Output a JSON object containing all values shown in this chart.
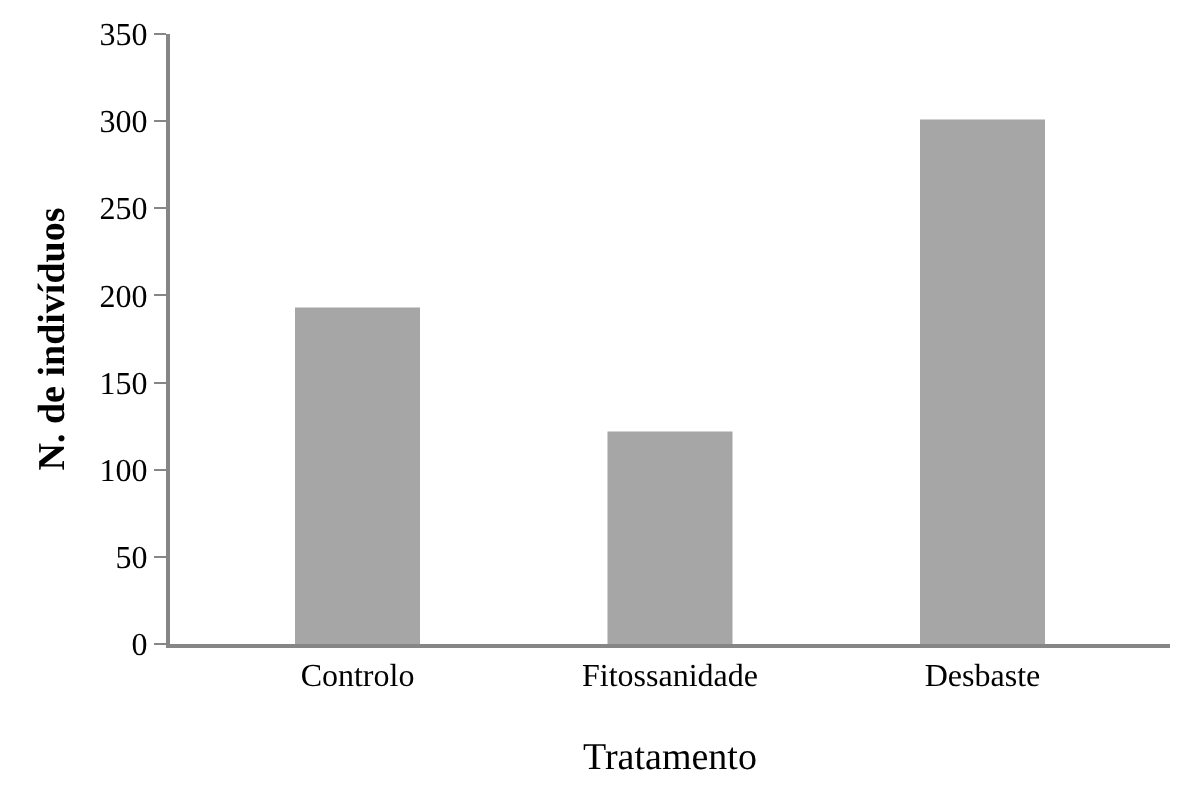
{
  "chart_data": {
    "type": "bar",
    "xlabel": "Tratamento",
    "ylabel": "N. de indivíduos",
    "categories": [
      "Controlo",
      "Fitossanidade",
      "Desbaste"
    ],
    "values": [
      193,
      122,
      301
    ],
    "color": "#a6a6a6",
    "ylim": [
      0,
      350
    ],
    "yticks": [
      0,
      50,
      100,
      150,
      200,
      250,
      300,
      350
    ]
  }
}
